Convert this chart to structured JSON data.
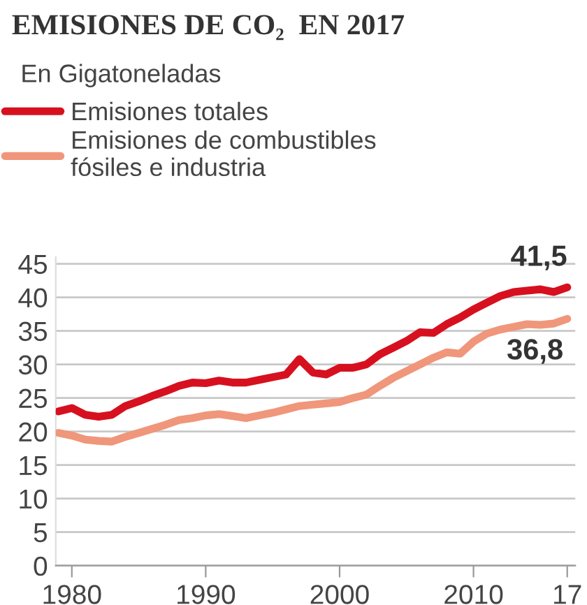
{
  "chart_data": {
    "type": "line",
    "title": "EMISIONES DE CO₂  EN 2017",
    "subtitle": "En Gigatoneladas",
    "x": [
      1979,
      1980,
      1981,
      1982,
      1983,
      1984,
      1985,
      1986,
      1987,
      1988,
      1989,
      1990,
      1991,
      1992,
      1993,
      1994,
      1995,
      1996,
      1997,
      1998,
      1999,
      2000,
      2001,
      2002,
      2003,
      2004,
      2005,
      2006,
      2007,
      2008,
      2009,
      2010,
      2011,
      2012,
      2013,
      2014,
      2015,
      2016,
      2017
    ],
    "series": [
      {
        "name": "Emisiones totales",
        "color": "#d7101f",
        "values": [
          23,
          23.5,
          22.5,
          22.2,
          22.5,
          23.8,
          24.5,
          25.3,
          26,
          26.8,
          27.3,
          27.2,
          27.6,
          27.3,
          27.3,
          27.7,
          28.1,
          28.5,
          30.8,
          28.8,
          28.5,
          29.5,
          29.5,
          30,
          31.5,
          32.5,
          33.5,
          34.8,
          34.7,
          36,
          37,
          38.2,
          39.2,
          40.2,
          40.8,
          41,
          41.2,
          40.8,
          41.5
        ]
      },
      {
        "name": "Emisiones de combustibles\nfósiles e industria",
        "color": "#f0967a",
        "values": [
          19.8,
          19.4,
          18.8,
          18.6,
          18.5,
          19.2,
          19.8,
          20.4,
          21,
          21.7,
          22,
          22.4,
          22.6,
          22.3,
          22,
          22.4,
          22.8,
          23.3,
          23.8,
          24,
          24.2,
          24.4,
          25,
          25.5,
          26.8,
          28,
          29,
          30,
          31,
          31.8,
          31.6,
          33.4,
          34.6,
          35.2,
          35.6,
          36,
          35.9,
          36.1,
          36.8
        ]
      }
    ],
    "xlim": [
      1978.8,
      2017.6
    ],
    "xticks": [
      1980,
      1990,
      2000,
      2010,
      {
        "value": 2017,
        "label": "17"
      }
    ],
    "ylim": [
      0,
      46
    ],
    "yticks": [
      0,
      5,
      10,
      15,
      20,
      25,
      30,
      35,
      40,
      45
    ],
    "annotations": [
      {
        "text": "41,5",
        "x": 2017,
        "y": 41.5
      },
      {
        "text": "36,8",
        "x": 2017,
        "y": 36.8
      }
    ],
    "grid": "y",
    "legend": "top left",
    "line_style": "solid",
    "marker": "none"
  }
}
